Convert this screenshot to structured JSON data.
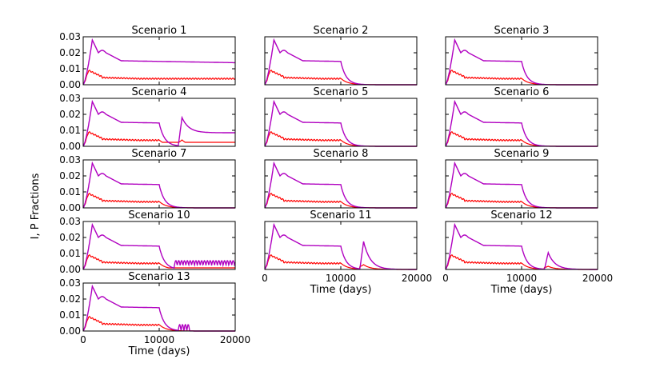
{
  "chart_data": {
    "type": "line",
    "ylabel": "I, P Fractions",
    "xlabel": "Time (days)",
    "xlim": [
      0,
      20000
    ],
    "ylim": [
      0,
      0.03
    ],
    "x_ticks": [
      "0",
      "10000",
      "20000"
    ],
    "y_ticks": [
      "0.00",
      "0.01",
      "0.02",
      "0.03"
    ],
    "series_styles": [
      {
        "name": "P",
        "color": "#b000c0"
      },
      {
        "name": "I",
        "color": "#ff0000"
      }
    ],
    "panels": [
      {
        "title": "Scenario 1",
        "show_y": true,
        "show_x": false,
        "p_end": 0.0135,
        "i_end": 0.0038,
        "stop": null,
        "rebound": null
      },
      {
        "title": "Scenario 2",
        "show_y": false,
        "show_x": false,
        "p_end": 0.0,
        "i_end": 0.0,
        "stop": 10000,
        "rebound": null
      },
      {
        "title": "Scenario 3",
        "show_y": false,
        "show_x": false,
        "p_end": 0.0,
        "i_end": 0.0,
        "stop": 10000,
        "rebound": null
      },
      {
        "title": "Scenario 4",
        "show_y": true,
        "show_x": false,
        "p_end": 0.0085,
        "i_end": 0.0025,
        "stop": 10000,
        "rebound": {
          "t": 13000,
          "p": 0.018,
          "settle": 0.0085,
          "i": 0.004
        }
      },
      {
        "title": "Scenario 5",
        "show_y": false,
        "show_x": false,
        "p_end": 0.0,
        "i_end": 0.0,
        "stop": 10000,
        "rebound": null
      },
      {
        "title": "Scenario 6",
        "show_y": false,
        "show_x": false,
        "p_end": 0.0,
        "i_end": 0.0,
        "stop": 10000,
        "rebound": null
      },
      {
        "title": "Scenario 7",
        "show_y": true,
        "show_x": false,
        "p_end": 0.0,
        "i_end": 0.0,
        "stop": 10000,
        "rebound": null
      },
      {
        "title": "Scenario 8",
        "show_y": false,
        "show_x": false,
        "p_end": 0.0,
        "i_end": 0.0,
        "stop": 10000,
        "rebound": null
      },
      {
        "title": "Scenario 9",
        "show_y": false,
        "show_x": false,
        "p_end": 0.0,
        "i_end": 0.0,
        "stop": 10000,
        "rebound": null
      },
      {
        "title": "Scenario 10",
        "show_y": true,
        "show_x": false,
        "p_end": 0.0025,
        "i_end": 0.001,
        "stop": 10000,
        "rebound": null,
        "oscillation": {
          "start": 12000,
          "amp": 0.003
        }
      },
      {
        "title": "Scenario 11",
        "show_y": false,
        "show_x": true,
        "p_end": 0.0,
        "i_end": 0.0,
        "stop": 10000,
        "rebound": {
          "t": 13000,
          "p": 0.0175,
          "settle": 0.0,
          "i": 0.003
        }
      },
      {
        "title": "Scenario 12",
        "show_y": false,
        "show_x": true,
        "p_end": 0.0,
        "i_end": 0.0,
        "stop": 10000,
        "rebound": {
          "t": 13500,
          "p": 0.0105,
          "settle": 0.0,
          "i": 0.002
        }
      },
      {
        "title": "Scenario 13",
        "show_y": true,
        "show_x": true,
        "p_end": 0.0,
        "i_end": 0.0,
        "stop": 10000,
        "rebound": null,
        "oscillation": {
          "start": 12500,
          "end": 14000,
          "amp": 0.004
        }
      }
    ]
  }
}
